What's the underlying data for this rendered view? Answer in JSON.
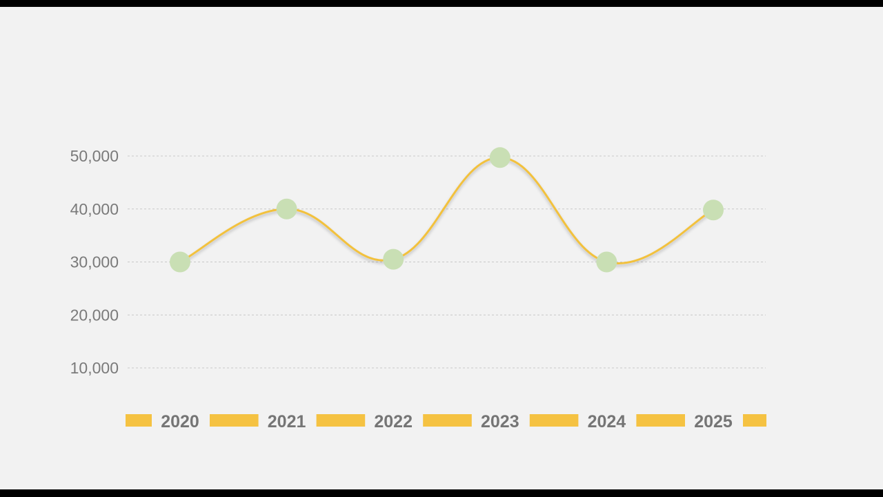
{
  "chart_data": {
    "type": "line",
    "title": "",
    "xlabel": "",
    "ylabel": "",
    "categories": [
      "2020",
      "2021",
      "2022",
      "2023",
      "2024",
      "2025"
    ],
    "values": [
      30000,
      40000,
      30500,
      49700,
      30000,
      39800
    ],
    "yticks": [
      10000,
      20000,
      30000,
      40000,
      50000
    ],
    "ytick_labels": [
      "10,000",
      "20,000",
      "30,000",
      "40,000",
      "50,000"
    ],
    "ylim": [
      10000,
      50000
    ],
    "grid": "horizontal dashed",
    "smooth": true,
    "colors": {
      "line": "#f2c13e",
      "marker": "#c9dfb4",
      "axis_band": "#f5c242",
      "text": "#777777",
      "background": "#f2f2f2"
    }
  }
}
